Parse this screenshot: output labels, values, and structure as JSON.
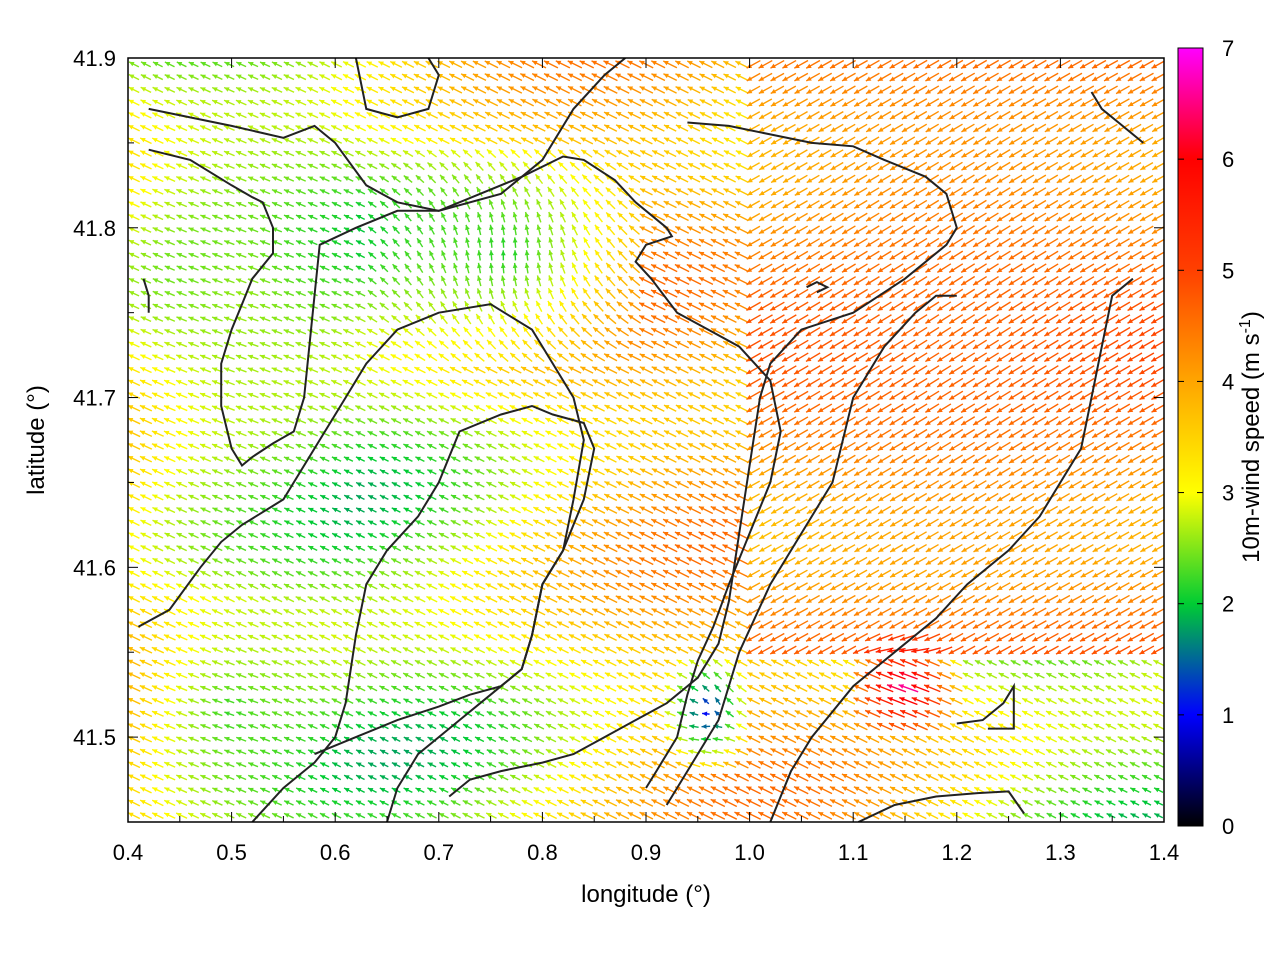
{
  "chart_data": {
    "type": "vector-field",
    "title": "",
    "xlabel": "longitude (°)",
    "ylabel": "latitude (°)",
    "xlim": [
      0.4,
      1.4
    ],
    "ylim": [
      41.45,
      41.9
    ],
    "x_ticks": [
      "0.4",
      "0.5",
      "0.6",
      "0.7",
      "0.8",
      "0.9",
      "1.0",
      "1.1",
      "1.2",
      "1.3",
      "1.4"
    ],
    "y_ticks": [
      "41.5",
      "41.6",
      "41.7",
      "41.8",
      "41.9"
    ],
    "grid": false,
    "colorbar": {
      "label": "10m-wind speed (m s",
      "label_sup": "-1",
      "label_end": ")",
      "range": [
        0,
        7
      ],
      "ticks": [
        "0",
        "1",
        "2",
        "3",
        "4",
        "5",
        "6",
        "7"
      ],
      "colors": [
        "#000000",
        "#0000ff",
        "#00cc33",
        "#ffff00",
        "#ffa500",
        "#ff4000",
        "#ff0000",
        "#ff00ff"
      ]
    },
    "vector_spacing_deg": {
      "dlon": 0.0115,
      "dlat": 0.0075
    },
    "wind_regions": [
      {
        "lon": [
          0.4,
          0.62
        ],
        "lat": [
          41.6,
          41.9
        ],
        "speed": 2.6,
        "dir": "east-to-west"
      },
      {
        "lon": [
          0.63,
          0.9
        ],
        "lat": [
          41.72,
          41.85
        ],
        "speed": 2.1,
        "dir": "south-to-north"
      },
      {
        "lon": [
          0.92,
          1.0
        ],
        "lat": [
          41.48,
          41.55
        ],
        "speed": 0.9,
        "dir": "divergent"
      },
      {
        "lon": [
          1.0,
          1.4
        ],
        "lat": [
          41.6,
          41.9
        ],
        "speed": 4.6,
        "dir": "northeast-to-southwest"
      },
      {
        "lon": [
          1.1,
          1.2
        ],
        "lat": [
          41.5,
          41.56
        ],
        "speed": 6.8,
        "dir": "east-to-west"
      },
      {
        "lon": [
          0.4,
          0.6
        ],
        "lat": [
          41.45,
          41.58
        ],
        "speed": 2.2,
        "dir": "east-to-west"
      }
    ],
    "contours": [
      [
        [
          0.42,
          41.87
        ],
        [
          0.5,
          41.86
        ],
        [
          0.55,
          41.853
        ],
        [
          0.58,
          41.86
        ],
        [
          0.6,
          41.85
        ],
        [
          0.63,
          41.825
        ],
        [
          0.66,
          41.815
        ],
        [
          0.7,
          41.81
        ],
        [
          0.76,
          41.82
        ],
        [
          0.8,
          41.84
        ],
        [
          0.83,
          41.87
        ],
        [
          0.86,
          41.89
        ],
        [
          0.88,
          41.9
        ]
      ],
      [
        [
          0.62,
          41.9
        ],
        [
          0.63,
          41.87
        ],
        [
          0.66,
          41.865
        ],
        [
          0.69,
          41.87
        ],
        [
          0.7,
          41.89
        ],
        [
          0.69,
          41.9
        ]
      ],
      [
        [
          0.42,
          41.846
        ],
        [
          0.46,
          41.84
        ],
        [
          0.5,
          41.825
        ],
        [
          0.52,
          41.818
        ],
        [
          0.53,
          41.815
        ],
        [
          0.54,
          41.8
        ],
        [
          0.54,
          41.785
        ],
        [
          0.52,
          41.77
        ],
        [
          0.51,
          41.755
        ],
        [
          0.5,
          41.74
        ],
        [
          0.49,
          41.72
        ],
        [
          0.49,
          41.695
        ],
        [
          0.5,
          41.67
        ],
        [
          0.51,
          41.66
        ],
        [
          0.52,
          41.665
        ],
        [
          0.54,
          41.673
        ],
        [
          0.56,
          41.68
        ],
        [
          0.57,
          41.7
        ],
        [
          0.575,
          41.73
        ],
        [
          0.58,
          41.76
        ],
        [
          0.585,
          41.79
        ],
        [
          0.62,
          41.8
        ],
        [
          0.66,
          41.81
        ],
        [
          0.7,
          41.81
        ],
        [
          0.74,
          41.82
        ],
        [
          0.78,
          41.83
        ],
        [
          0.82,
          41.842
        ],
        [
          0.84,
          41.84
        ],
        [
          0.87,
          41.828
        ],
        [
          0.89,
          41.815
        ],
        [
          0.92,
          41.8
        ],
        [
          0.925,
          41.795
        ],
        [
          0.9,
          41.79
        ],
        [
          0.89,
          41.78
        ],
        [
          0.905,
          41.77
        ],
        [
          0.93,
          41.75
        ],
        [
          0.96,
          41.74
        ],
        [
          0.99,
          41.73
        ],
        [
          1.02,
          41.71
        ],
        [
          1.03,
          41.68
        ],
        [
          1.02,
          41.65
        ],
        [
          1.0,
          41.62
        ],
        [
          0.98,
          41.59
        ],
        [
          0.965,
          41.565
        ],
        [
          0.95,
          41.545
        ],
        [
          0.94,
          41.525
        ],
        [
          0.93,
          41.5
        ],
        [
          0.91,
          41.48
        ],
        [
          0.9,
          41.47
        ]
      ],
      [
        [
          0.71,
          41.465
        ],
        [
          0.73,
          41.475
        ],
        [
          0.76,
          41.48
        ],
        [
          0.8,
          41.485
        ],
        [
          0.83,
          41.49
        ],
        [
          0.86,
          41.5
        ],
        [
          0.89,
          41.51
        ],
        [
          0.92,
          41.52
        ],
        [
          0.95,
          41.535
        ],
        [
          0.97,
          41.555
        ],
        [
          0.98,
          41.58
        ],
        [
          0.99,
          41.62
        ],
        [
          1.0,
          41.66
        ],
        [
          1.01,
          41.7
        ],
        [
          1.02,
          41.72
        ],
        [
          1.05,
          41.74
        ],
        [
          1.1,
          41.75
        ],
        [
          1.15,
          41.77
        ],
        [
          1.19,
          41.79
        ],
        [
          1.2,
          41.8
        ],
        [
          1.19,
          41.82
        ],
        [
          1.17,
          41.83
        ],
        [
          1.13,
          41.84
        ],
        [
          1.1,
          41.848
        ],
        [
          1.06,
          41.85
        ],
        [
          1.02,
          41.855
        ],
        [
          0.98,
          41.86
        ],
        [
          0.94,
          41.862
        ]
      ],
      [
        [
          0.52,
          41.45
        ],
        [
          0.55,
          41.47
        ],
        [
          0.58,
          41.485
        ],
        [
          0.6,
          41.5
        ],
        [
          0.61,
          41.52
        ],
        [
          0.62,
          41.56
        ],
        [
          0.63,
          41.59
        ],
        [
          0.65,
          41.61
        ],
        [
          0.68,
          41.63
        ],
        [
          0.7,
          41.65
        ],
        [
          0.72,
          41.68
        ],
        [
          0.76,
          41.69
        ],
        [
          0.79,
          41.695
        ],
        [
          0.81,
          41.69
        ],
        [
          0.84,
          41.685
        ],
        [
          0.85,
          41.67
        ],
        [
          0.84,
          41.64
        ],
        [
          0.82,
          41.61
        ],
        [
          0.8,
          41.59
        ],
        [
          0.79,
          41.56
        ],
        [
          0.78,
          41.54
        ],
        [
          0.76,
          41.53
        ],
        [
          0.74,
          41.52
        ],
        [
          0.72,
          41.51
        ],
        [
          0.7,
          41.5
        ],
        [
          0.68,
          41.49
        ],
        [
          0.66,
          41.47
        ],
        [
          0.65,
          41.45
        ]
      ],
      [
        [
          0.41,
          41.565
        ],
        [
          0.44,
          41.575
        ],
        [
          0.47,
          41.6
        ],
        [
          0.49,
          41.615
        ],
        [
          0.51,
          41.625
        ],
        [
          0.55,
          41.64
        ],
        [
          0.58,
          41.67
        ],
        [
          0.61,
          41.7
        ],
        [
          0.63,
          41.72
        ],
        [
          0.66,
          41.74
        ],
        [
          0.7,
          41.75
        ],
        [
          0.75,
          41.755
        ],
        [
          0.79,
          41.74
        ],
        [
          0.81,
          41.72
        ],
        [
          0.83,
          41.7
        ],
        [
          0.84,
          41.675
        ],
        [
          0.83,
          41.64
        ],
        [
          0.82,
          41.61
        ],
        [
          0.8,
          41.59
        ],
        [
          0.79,
          41.56
        ],
        [
          0.78,
          41.54
        ],
        [
          0.76,
          41.53
        ],
        [
          0.73,
          41.525
        ],
        [
          0.7,
          41.518
        ],
        [
          0.66,
          41.51
        ],
        [
          0.62,
          41.5
        ],
        [
          0.58,
          41.49
        ]
      ],
      [
        [
          0.415,
          41.77
        ],
        [
          0.42,
          41.76
        ],
        [
          0.42,
          41.75
        ]
      ],
      [
        [
          1.02,
          41.45
        ],
        [
          1.04,
          41.48
        ],
        [
          1.06,
          41.5
        ],
        [
          1.1,
          41.53
        ],
        [
          1.14,
          41.55
        ],
        [
          1.18,
          41.57
        ],
        [
          1.21,
          41.59
        ],
        [
          1.25,
          41.61
        ],
        [
          1.28,
          41.63
        ],
        [
          1.3,
          41.65
        ],
        [
          1.32,
          41.67
        ],
        [
          1.33,
          41.7
        ],
        [
          1.34,
          41.73
        ],
        [
          1.35,
          41.76
        ],
        [
          1.37,
          41.77
        ]
      ],
      [
        [
          0.92,
          41.46
        ],
        [
          0.94,
          41.48
        ],
        [
          0.97,
          41.51
        ],
        [
          0.99,
          41.55
        ],
        [
          1.02,
          41.59
        ],
        [
          1.05,
          41.62
        ],
        [
          1.08,
          41.65
        ],
        [
          1.1,
          41.7
        ],
        [
          1.13,
          41.73
        ],
        [
          1.16,
          41.75
        ],
        [
          1.18,
          41.76
        ],
        [
          1.2,
          41.76
        ]
      ],
      [
        [
          1.105,
          41.45
        ],
        [
          1.14,
          41.46
        ],
        [
          1.18,
          41.465
        ],
        [
          1.22,
          41.467
        ],
        [
          1.25,
          41.468
        ],
        [
          1.265,
          41.455
        ]
      ],
      [
        [
          1.2,
          41.508
        ],
        [
          1.225,
          41.51
        ],
        [
          1.245,
          41.52
        ],
        [
          1.255,
          41.53
        ],
        [
          1.255,
          41.505
        ],
        [
          1.23,
          41.505
        ]
      ],
      [
        [
          1.33,
          41.88
        ],
        [
          1.34,
          41.87
        ],
        [
          1.36,
          41.86
        ],
        [
          1.38,
          41.85
        ]
      ],
      [
        [
          1.055,
          41.765
        ],
        [
          1.065,
          41.768
        ],
        [
          1.075,
          41.765
        ],
        [
          1.065,
          41.762
        ]
      ]
    ]
  }
}
